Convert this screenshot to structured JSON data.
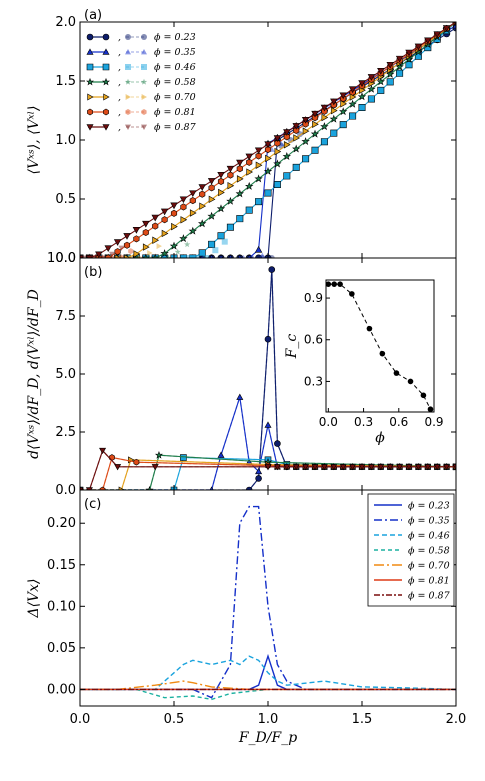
{
  "chart_data": [
    {
      "panel": "(a)",
      "type": "line",
      "ylabel": "⟨Vˣˢ⟩, ⟨Vˣˡ⟩",
      "xlim": [
        0,
        2
      ],
      "ylim": [
        0,
        2
      ],
      "yticks": [
        "0.0",
        "0.5",
        "1.0",
        "1.5",
        "2.0"
      ],
      "legend_placement": "top-left",
      "series": [
        {
          "name": "ϕ = 0.23",
          "color": "#0d1d6b",
          "marker": "circle",
          "onset": 1.03,
          "slope": 1.0
        },
        {
          "name": "ϕ = 0.35",
          "color": "#1530c9",
          "marker": "triangle",
          "onset": 0.93,
          "slope": 1.0
        },
        {
          "name": "ϕ = 0.46",
          "color": "#1aa3dd",
          "marker": "square",
          "onset": 0.62,
          "slope": 1.0
        },
        {
          "name": "ϕ = 0.58",
          "color": "#1e7d4a",
          "marker": "star",
          "onset": 0.42,
          "slope": 1.0
        },
        {
          "name": "ϕ = 0.70",
          "color": "#e3a11c",
          "marker": "triangle-right",
          "onset": 0.27,
          "slope": 1.0
        },
        {
          "name": "ϕ = 0.81",
          "color": "#dd4a17",
          "marker": "hexagon",
          "onset": 0.15,
          "slope": 1.0
        },
        {
          "name": "ϕ = 0.87",
          "color": "#6b0d0d",
          "marker": "triangle-down",
          "onset": 0.07,
          "slope": 1.0
        }
      ]
    },
    {
      "panel": "(b)",
      "type": "line",
      "ylabel": "d⟨Vˣˢ⟩/dF_D, d⟨Vˣˡ⟩/dF_D",
      "xlim": [
        0,
        2
      ],
      "ylim": [
        0,
        10
      ],
      "yticks": [
        "0.0",
        "2.5",
        "5.0",
        "7.5",
        "10.0"
      ],
      "peaks": [
        {
          "series": "ϕ = 0.23",
          "x": [
            0.9,
            0.95,
            1.0,
            1.02,
            1.05,
            1.1
          ],
          "y": [
            0.0,
            0.5,
            6.5,
            9.5,
            2.0,
            1.0
          ]
        },
        {
          "series": "ϕ = 0.35",
          "x": [
            0.7,
            0.75,
            0.85,
            0.9,
            0.95,
            1.0,
            1.05,
            1.1
          ],
          "y": [
            0.0,
            1.5,
            4.0,
            1.2,
            0.8,
            2.8,
            1.0,
            1.0
          ]
        },
        {
          "series": "ϕ = 0.46",
          "x": [
            0.5,
            0.55,
            1.0,
            1.1
          ],
          "y": [
            0.0,
            1.4,
            1.3,
            1.1
          ]
        },
        {
          "series": "ϕ = 0.58",
          "x": [
            0.37,
            0.42,
            1.0
          ],
          "y": [
            0.0,
            1.5,
            1.2
          ]
        },
        {
          "series": "ϕ = 0.70",
          "x": [
            0.22,
            0.27,
            1.0
          ],
          "y": [
            0.0,
            1.3,
            1.1
          ]
        },
        {
          "series": "ϕ = 0.81",
          "x": [
            0.12,
            0.17,
            0.3,
            1.0
          ],
          "y": [
            0.0,
            1.4,
            1.2,
            1.05
          ]
        },
        {
          "series": "ϕ = 0.87",
          "x": [
            0.05,
            0.12,
            0.2,
            0.4,
            1.0
          ],
          "y": [
            0.0,
            1.7,
            1.0,
            1.0,
            1.0
          ]
        }
      ],
      "inset": {
        "xlabel": "ϕ",
        "ylabel": "F_c",
        "xticks": [
          "0.0",
          "0.3",
          "0.6",
          "0.9"
        ],
        "yticks": [
          "0.3",
          "0.6",
          "0.9"
        ],
        "x": [
          0.0,
          0.05,
          0.1,
          0.2,
          0.35,
          0.46,
          0.58,
          0.7,
          0.81,
          0.87
        ],
        "y": [
          1.0,
          1.0,
          1.0,
          0.93,
          0.68,
          0.5,
          0.36,
          0.3,
          0.2,
          0.1
        ]
      }
    },
    {
      "panel": "(c)",
      "type": "line",
      "xlabel": "F_D/F_p",
      "ylabel": "Δ⟨Vx⟩",
      "xlim": [
        0,
        2
      ],
      "ylim": [
        -0.02,
        0.24
      ],
      "xticks": [
        "0.0",
        "0.5",
        "1.0",
        "1.5",
        "2.0"
      ],
      "yticks": [
        "0.00",
        "0.05",
        "0.10",
        "0.15",
        "0.20"
      ],
      "legend_placement": "top-right",
      "series": [
        {
          "name": "ϕ = 0.23",
          "color": "#1530c9",
          "dash": "",
          "x": [
            0,
            0.9,
            0.95,
            1.0,
            1.05,
            1.1,
            2.0
          ],
          "y": [
            0,
            0,
            0.005,
            0.04,
            0.005,
            0,
            0
          ]
        },
        {
          "name": "ϕ = 0.35",
          "color": "#1530c9",
          "dash": "8,3,2,3",
          "x": [
            0,
            0.6,
            0.7,
            0.8,
            0.85,
            0.9,
            0.95,
            1.0,
            1.05,
            1.1,
            1.2,
            2.0
          ],
          "y": [
            0,
            0,
            -0.01,
            0.03,
            0.2,
            0.22,
            0.22,
            0.1,
            0.03,
            0.01,
            0,
            0
          ]
        },
        {
          "name": "ϕ = 0.46",
          "color": "#1aa3dd",
          "dash": "5,3",
          "x": [
            0,
            0.4,
            0.5,
            0.55,
            0.6,
            0.7,
            0.8,
            0.85,
            0.9,
            0.95,
            1.0,
            1.05,
            1.1,
            1.3,
            1.5,
            1.7,
            2.0
          ],
          "y": [
            0,
            0,
            0.02,
            0.03,
            0.035,
            0.03,
            0.035,
            0.03,
            0.04,
            0.035,
            0.02,
            0.01,
            0.005,
            0.01,
            0.003,
            0.002,
            0
          ]
        },
        {
          "name": "ϕ = 0.58",
          "color": "#1bb0a0",
          "dash": "4,3",
          "x": [
            0,
            0.3,
            0.45,
            0.6,
            0.7,
            0.8,
            1.0,
            1.3,
            2.0
          ],
          "y": [
            0,
            0,
            -0.01,
            -0.008,
            -0.012,
            -0.005,
            0,
            0,
            0
          ]
        },
        {
          "name": "ϕ = 0.70",
          "color": "#f08a12",
          "dash": "10,3,2,3",
          "x": [
            0,
            0.2,
            0.4,
            0.55,
            0.6,
            0.7,
            0.9,
            2.0
          ],
          "y": [
            0,
            0,
            0.005,
            0.01,
            0.008,
            0.003,
            0,
            0
          ]
        },
        {
          "name": "ϕ = 0.81",
          "color": "#dd3a17",
          "dash": "",
          "x": [
            0,
            0.5,
            1.0,
            1.5,
            2.0
          ],
          "y": [
            0,
            0,
            0,
            0,
            0
          ]
        },
        {
          "name": "ϕ = 0.87",
          "color": "#7a0d0d",
          "dash": "6,2,2,2",
          "x": [
            0,
            0.5,
            1.0,
            1.5,
            2.0
          ],
          "y": [
            0,
            0,
            0,
            0,
            0
          ]
        }
      ]
    }
  ]
}
